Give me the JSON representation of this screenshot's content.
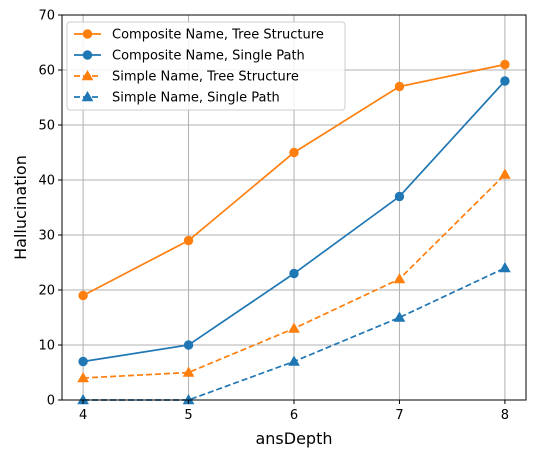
{
  "chart_data": {
    "type": "line",
    "title": "",
    "xlabel": "ansDepth",
    "ylabel": "Hallucination",
    "x": [
      4,
      5,
      6,
      7,
      8
    ],
    "xticks": [
      "4",
      "5",
      "6",
      "7",
      "8"
    ],
    "xlim": [
      3.8,
      8.2
    ],
    "ylim": [
      0,
      70
    ],
    "yticks": [
      "0",
      "10",
      "20",
      "30",
      "40",
      "50",
      "60",
      "70"
    ],
    "grid": true,
    "legend_position": "upper-left",
    "series": [
      {
        "name": "Composite Name, Tree Structure",
        "values": [
          19,
          29,
          45,
          57,
          61
        ],
        "color": "#ff7f0e",
        "linestyle": "solid",
        "marker": "circle"
      },
      {
        "name": "Composite Name, Single Path",
        "values": [
          7,
          10,
          23,
          37,
          58
        ],
        "color": "#1f77b4",
        "linestyle": "solid",
        "marker": "circle"
      },
      {
        "name": "Simple Name, Tree Structure",
        "values": [
          4,
          5,
          13,
          22,
          41
        ],
        "color": "#ff7f0e",
        "linestyle": "dashed",
        "marker": "triangle"
      },
      {
        "name": "Simple Name, Single Path",
        "values": [
          0,
          0,
          7,
          15,
          24
        ],
        "color": "#1f77b4",
        "linestyle": "dashed",
        "marker": "triangle"
      }
    ]
  }
}
